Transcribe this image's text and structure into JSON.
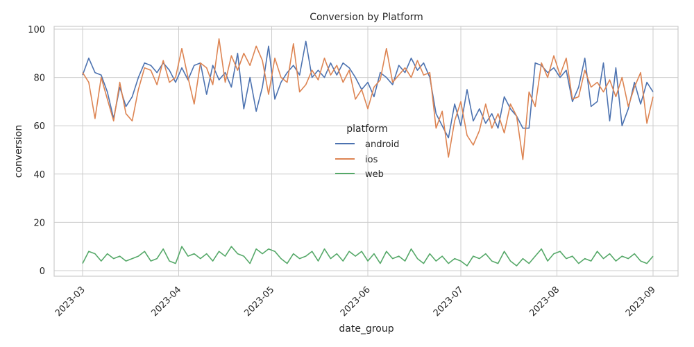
{
  "chart_data": {
    "type": "line",
    "title": "Conversion by Platform",
    "xlabel": "date_group",
    "ylabel": "conversion",
    "ylim": [
      0,
      100
    ],
    "xlim": [
      "2023-03-01",
      "2023-09-01"
    ],
    "grid": true,
    "legend": {
      "title": "platform",
      "placement": "center"
    },
    "x_ticks": [
      "2023-03",
      "2023-04",
      "2023-05",
      "2023-06",
      "2023-07",
      "2023-08",
      "2023-09"
    ],
    "x_tick_dates": [
      "2023-03-01",
      "2023-04-01",
      "2023-05-01",
      "2023-06-01",
      "2023-07-01",
      "2023-08-01",
      "2023-09-01"
    ],
    "y_ticks": [
      0,
      20,
      40,
      60,
      80,
      100
    ],
    "series": [
      {
        "name": "android",
        "color": "#4c72b0",
        "points": [
          [
            "2023-03-01",
            81
          ],
          [
            "2023-03-03",
            88
          ],
          [
            "2023-03-05",
            82
          ],
          [
            "2023-03-07",
            81
          ],
          [
            "2023-03-09",
            74
          ],
          [
            "2023-03-11",
            63
          ],
          [
            "2023-03-13",
            76
          ],
          [
            "2023-03-15",
            68
          ],
          [
            "2023-03-17",
            72
          ],
          [
            "2023-03-19",
            80
          ],
          [
            "2023-03-21",
            86
          ],
          [
            "2023-03-23",
            85
          ],
          [
            "2023-03-25",
            82
          ],
          [
            "2023-03-27",
            86
          ],
          [
            "2023-03-29",
            83
          ],
          [
            "2023-03-31",
            78
          ],
          [
            "2023-04-02",
            84
          ],
          [
            "2023-04-04",
            79
          ],
          [
            "2023-04-06",
            85
          ],
          [
            "2023-04-08",
            86
          ],
          [
            "2023-04-10",
            73
          ],
          [
            "2023-04-12",
            85
          ],
          [
            "2023-04-14",
            79
          ],
          [
            "2023-04-16",
            82
          ],
          [
            "2023-04-18",
            76
          ],
          [
            "2023-04-20",
            90
          ],
          [
            "2023-04-22",
            67
          ],
          [
            "2023-04-24",
            80
          ],
          [
            "2023-04-26",
            66
          ],
          [
            "2023-04-28",
            76
          ],
          [
            "2023-04-30",
            93
          ],
          [
            "2023-05-02",
            71
          ],
          [
            "2023-05-04",
            78
          ],
          [
            "2023-05-06",
            82
          ],
          [
            "2023-05-08",
            85
          ],
          [
            "2023-05-10",
            81
          ],
          [
            "2023-05-12",
            95
          ],
          [
            "2023-05-14",
            80
          ],
          [
            "2023-05-16",
            83
          ],
          [
            "2023-05-18",
            80
          ],
          [
            "2023-05-20",
            86
          ],
          [
            "2023-05-22",
            81
          ],
          [
            "2023-05-24",
            86
          ],
          [
            "2023-05-26",
            84
          ],
          [
            "2023-05-28",
            80
          ],
          [
            "2023-05-30",
            75
          ],
          [
            "2023-06-01",
            78
          ],
          [
            "2023-06-03",
            72
          ],
          [
            "2023-06-05",
            82
          ],
          [
            "2023-06-07",
            80
          ],
          [
            "2023-06-09",
            77
          ],
          [
            "2023-06-11",
            85
          ],
          [
            "2023-06-13",
            82
          ],
          [
            "2023-06-15",
            88
          ],
          [
            "2023-06-17",
            83
          ],
          [
            "2023-06-19",
            86
          ],
          [
            "2023-06-21",
            80
          ],
          [
            "2023-06-23",
            65
          ],
          [
            "2023-06-25",
            60
          ],
          [
            "2023-06-27",
            55
          ],
          [
            "2023-06-29",
            69
          ],
          [
            "2023-07-01",
            60
          ],
          [
            "2023-07-03",
            75
          ],
          [
            "2023-07-05",
            62
          ],
          [
            "2023-07-07",
            67
          ],
          [
            "2023-07-09",
            61
          ],
          [
            "2023-07-11",
            65
          ],
          [
            "2023-07-13",
            59
          ],
          [
            "2023-07-15",
            72
          ],
          [
            "2023-07-17",
            67
          ],
          [
            "2023-07-19",
            64
          ],
          [
            "2023-07-21",
            59
          ],
          [
            "2023-07-23",
            59
          ],
          [
            "2023-07-25",
            86
          ],
          [
            "2023-07-27",
            85
          ],
          [
            "2023-07-29",
            82
          ],
          [
            "2023-07-31",
            84
          ],
          [
            "2023-08-02",
            80
          ],
          [
            "2023-08-04",
            83
          ],
          [
            "2023-08-06",
            70
          ],
          [
            "2023-08-08",
            76
          ],
          [
            "2023-08-10",
            88
          ],
          [
            "2023-08-12",
            68
          ],
          [
            "2023-08-14",
            70
          ],
          [
            "2023-08-16",
            86
          ],
          [
            "2023-08-18",
            62
          ],
          [
            "2023-08-20",
            84
          ],
          [
            "2023-08-22",
            60
          ],
          [
            "2023-08-24",
            67
          ],
          [
            "2023-08-26",
            78
          ],
          [
            "2023-08-28",
            69
          ],
          [
            "2023-08-30",
            78
          ],
          [
            "2023-09-01",
            74
          ]
        ]
      },
      {
        "name": "ios",
        "color": "#dd8452",
        "points": [
          [
            "2023-03-01",
            82
          ],
          [
            "2023-03-03",
            78
          ],
          [
            "2023-03-05",
            63
          ],
          [
            "2023-03-07",
            80
          ],
          [
            "2023-03-09",
            71
          ],
          [
            "2023-03-11",
            62
          ],
          [
            "2023-03-13",
            78
          ],
          [
            "2023-03-15",
            65
          ],
          [
            "2023-03-17",
            62
          ],
          [
            "2023-03-19",
            75
          ],
          [
            "2023-03-21",
            84
          ],
          [
            "2023-03-23",
            83
          ],
          [
            "2023-03-25",
            77
          ],
          [
            "2023-03-27",
            87
          ],
          [
            "2023-03-29",
            78
          ],
          [
            "2023-03-31",
            80
          ],
          [
            "2023-04-02",
            92
          ],
          [
            "2023-04-04",
            80
          ],
          [
            "2023-04-06",
            69
          ],
          [
            "2023-04-08",
            86
          ],
          [
            "2023-04-10",
            84
          ],
          [
            "2023-04-12",
            77
          ],
          [
            "2023-04-14",
            96
          ],
          [
            "2023-04-16",
            78
          ],
          [
            "2023-04-18",
            89
          ],
          [
            "2023-04-20",
            83
          ],
          [
            "2023-04-22",
            90
          ],
          [
            "2023-04-24",
            85
          ],
          [
            "2023-04-26",
            93
          ],
          [
            "2023-04-28",
            87
          ],
          [
            "2023-04-30",
            73
          ],
          [
            "2023-05-02",
            88
          ],
          [
            "2023-05-04",
            80
          ],
          [
            "2023-05-06",
            78
          ],
          [
            "2023-05-08",
            94
          ],
          [
            "2023-05-10",
            74
          ],
          [
            "2023-05-12",
            77
          ],
          [
            "2023-05-14",
            83
          ],
          [
            "2023-05-16",
            79
          ],
          [
            "2023-05-18",
            88
          ],
          [
            "2023-05-20",
            81
          ],
          [
            "2023-05-22",
            85
          ],
          [
            "2023-05-24",
            78
          ],
          [
            "2023-05-26",
            83
          ],
          [
            "2023-05-28",
            71
          ],
          [
            "2023-05-30",
            75
          ],
          [
            "2023-06-01",
            67
          ],
          [
            "2023-06-03",
            76
          ],
          [
            "2023-06-05",
            79
          ],
          [
            "2023-06-07",
            92
          ],
          [
            "2023-06-09",
            78
          ],
          [
            "2023-06-11",
            81
          ],
          [
            "2023-06-13",
            84
          ],
          [
            "2023-06-15",
            80
          ],
          [
            "2023-06-17",
            87
          ],
          [
            "2023-06-19",
            81
          ],
          [
            "2023-06-21",
            82
          ],
          [
            "2023-06-23",
            59
          ],
          [
            "2023-06-25",
            66
          ],
          [
            "2023-06-27",
            47
          ],
          [
            "2023-06-29",
            62
          ],
          [
            "2023-07-01",
            70
          ],
          [
            "2023-07-03",
            56
          ],
          [
            "2023-07-05",
            52
          ],
          [
            "2023-07-07",
            58
          ],
          [
            "2023-07-09",
            69
          ],
          [
            "2023-07-11",
            59
          ],
          [
            "2023-07-13",
            65
          ],
          [
            "2023-07-15",
            57
          ],
          [
            "2023-07-17",
            69
          ],
          [
            "2023-07-19",
            64
          ],
          [
            "2023-07-21",
            46
          ],
          [
            "2023-07-23",
            74
          ],
          [
            "2023-07-25",
            68
          ],
          [
            "2023-07-27",
            86
          ],
          [
            "2023-07-29",
            80
          ],
          [
            "2023-07-31",
            89
          ],
          [
            "2023-08-02",
            81
          ],
          [
            "2023-08-04",
            88
          ],
          [
            "2023-08-06",
            71
          ],
          [
            "2023-08-08",
            72
          ],
          [
            "2023-08-10",
            83
          ],
          [
            "2023-08-12",
            76
          ],
          [
            "2023-08-14",
            78
          ],
          [
            "2023-08-16",
            74
          ],
          [
            "2023-08-18",
            79
          ],
          [
            "2023-08-20",
            72
          ],
          [
            "2023-08-22",
            80
          ],
          [
            "2023-08-24",
            68
          ],
          [
            "2023-08-26",
            76
          ],
          [
            "2023-08-28",
            82
          ],
          [
            "2023-08-30",
            61
          ],
          [
            "2023-09-01",
            72
          ]
        ]
      },
      {
        "name": "web",
        "color": "#55a868",
        "points": [
          [
            "2023-03-01",
            3
          ],
          [
            "2023-03-03",
            8
          ],
          [
            "2023-03-05",
            7
          ],
          [
            "2023-03-07",
            4
          ],
          [
            "2023-03-09",
            7
          ],
          [
            "2023-03-11",
            5
          ],
          [
            "2023-03-13",
            6
          ],
          [
            "2023-03-15",
            4
          ],
          [
            "2023-03-17",
            5
          ],
          [
            "2023-03-19",
            6
          ],
          [
            "2023-03-21",
            8
          ],
          [
            "2023-03-23",
            4
          ],
          [
            "2023-03-25",
            5
          ],
          [
            "2023-03-27",
            9
          ],
          [
            "2023-03-29",
            4
          ],
          [
            "2023-03-31",
            3
          ],
          [
            "2023-04-02",
            10
          ],
          [
            "2023-04-04",
            6
          ],
          [
            "2023-04-06",
            7
          ],
          [
            "2023-04-08",
            5
          ],
          [
            "2023-04-10",
            7
          ],
          [
            "2023-04-12",
            4
          ],
          [
            "2023-04-14",
            8
          ],
          [
            "2023-04-16",
            6
          ],
          [
            "2023-04-18",
            10
          ],
          [
            "2023-04-20",
            7
          ],
          [
            "2023-04-22",
            6
          ],
          [
            "2023-04-24",
            3
          ],
          [
            "2023-04-26",
            9
          ],
          [
            "2023-04-28",
            7
          ],
          [
            "2023-04-30",
            9
          ],
          [
            "2023-05-02",
            8
          ],
          [
            "2023-05-04",
            5
          ],
          [
            "2023-05-06",
            3
          ],
          [
            "2023-05-08",
            7
          ],
          [
            "2023-05-10",
            5
          ],
          [
            "2023-05-12",
            6
          ],
          [
            "2023-05-14",
            8
          ],
          [
            "2023-05-16",
            4
          ],
          [
            "2023-05-18",
            9
          ],
          [
            "2023-05-20",
            5
          ],
          [
            "2023-05-22",
            7
          ],
          [
            "2023-05-24",
            4
          ],
          [
            "2023-05-26",
            8
          ],
          [
            "2023-05-28",
            6
          ],
          [
            "2023-05-30",
            8
          ],
          [
            "2023-06-01",
            4
          ],
          [
            "2023-06-03",
            7
          ],
          [
            "2023-06-05",
            3
          ],
          [
            "2023-06-07",
            8
          ],
          [
            "2023-06-09",
            5
          ],
          [
            "2023-06-11",
            6
          ],
          [
            "2023-06-13",
            4
          ],
          [
            "2023-06-15",
            9
          ],
          [
            "2023-06-17",
            5
          ],
          [
            "2023-06-19",
            3
          ],
          [
            "2023-06-21",
            7
          ],
          [
            "2023-06-23",
            4
          ],
          [
            "2023-06-25",
            6
          ],
          [
            "2023-06-27",
            3
          ],
          [
            "2023-06-29",
            5
          ],
          [
            "2023-07-01",
            4
          ],
          [
            "2023-07-03",
            2
          ],
          [
            "2023-07-05",
            6
          ],
          [
            "2023-07-07",
            5
          ],
          [
            "2023-07-09",
            7
          ],
          [
            "2023-07-11",
            4
          ],
          [
            "2023-07-13",
            3
          ],
          [
            "2023-07-15",
            8
          ],
          [
            "2023-07-17",
            4
          ],
          [
            "2023-07-19",
            2
          ],
          [
            "2023-07-21",
            5
          ],
          [
            "2023-07-23",
            3
          ],
          [
            "2023-07-25",
            6
          ],
          [
            "2023-07-27",
            9
          ],
          [
            "2023-07-29",
            4
          ],
          [
            "2023-07-31",
            7
          ],
          [
            "2023-08-02",
            8
          ],
          [
            "2023-08-04",
            5
          ],
          [
            "2023-08-06",
            6
          ],
          [
            "2023-08-08",
            3
          ],
          [
            "2023-08-10",
            5
          ],
          [
            "2023-08-12",
            4
          ],
          [
            "2023-08-14",
            8
          ],
          [
            "2023-08-16",
            5
          ],
          [
            "2023-08-18",
            7
          ],
          [
            "2023-08-20",
            4
          ],
          [
            "2023-08-22",
            6
          ],
          [
            "2023-08-24",
            5
          ],
          [
            "2023-08-26",
            7
          ],
          [
            "2023-08-28",
            4
          ],
          [
            "2023-08-30",
            3
          ],
          [
            "2023-09-01",
            6
          ]
        ]
      }
    ]
  }
}
